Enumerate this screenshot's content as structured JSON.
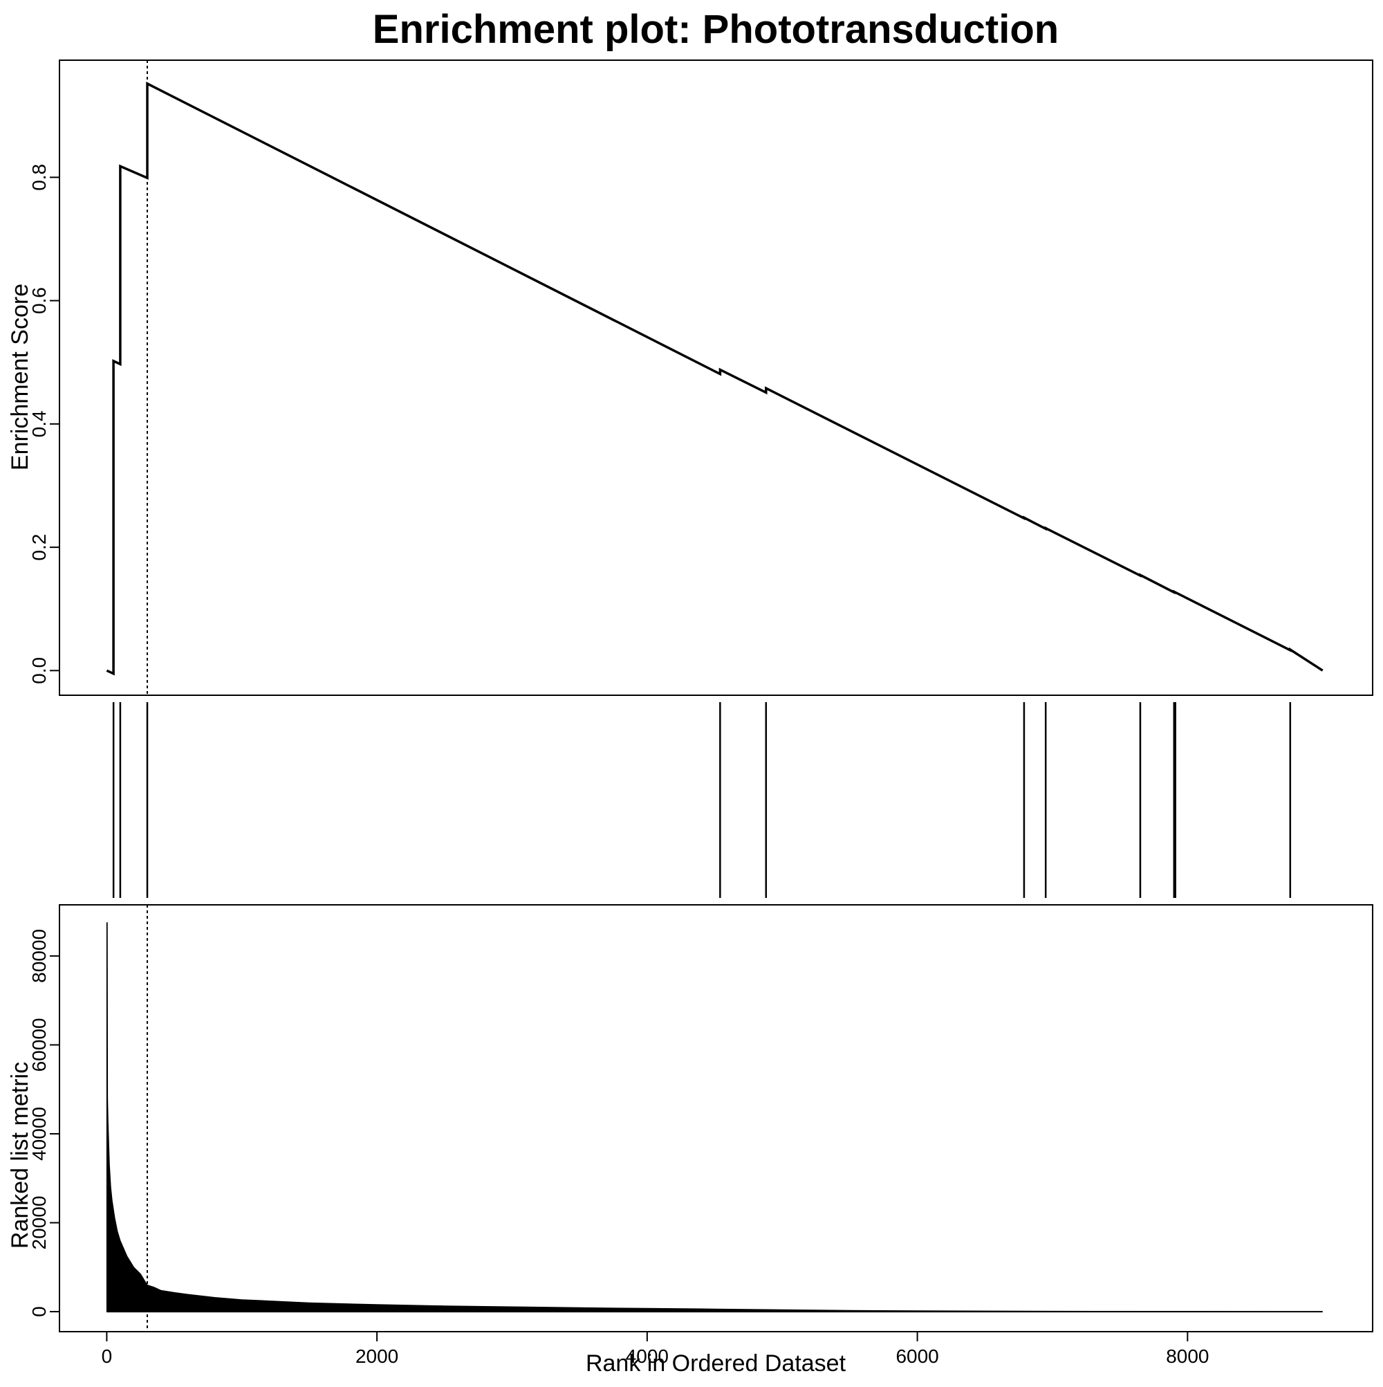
{
  "chart_data": {
    "type": "line",
    "title": "Enrichment plot: Phototransduction",
    "xlabel": "Rank in Ordered Dataset",
    "xlim": [
      -350,
      9370
    ],
    "x_ticks": [
      {
        "value": 0,
        "label": "0"
      },
      {
        "value": 2000,
        "label": "2000"
      },
      {
        "value": 4000,
        "label": "4000"
      },
      {
        "value": 6000,
        "label": "6000"
      },
      {
        "value": 8000,
        "label": "8000"
      }
    ],
    "leading_edge_rank": 300,
    "panels": [
      {
        "id": "enrichment",
        "type": "line",
        "ylabel": "Enrichment Score",
        "ylim": [
          -0.04,
          0.99
        ],
        "y_ticks": [
          {
            "value": 0.0,
            "label": "0.0"
          },
          {
            "value": 0.2,
            "label": "0.2"
          },
          {
            "value": 0.4,
            "label": "0.4"
          },
          {
            "value": 0.6,
            "label": "0.6"
          },
          {
            "value": 0.8,
            "label": "0.8"
          }
        ],
        "series": [
          {
            "points": [
              [
                0,
                0.0
              ],
              [
                50,
                -0.005
              ],
              [
                50,
                0.502
              ],
              [
                100,
                0.497
              ],
              [
                100,
                0.818
              ],
              [
                300,
                0.799
              ],
              [
                300,
                0.952
              ],
              [
                4540,
                0.481
              ],
              [
                4540,
                0.488
              ],
              [
                4880,
                0.451
              ],
              [
                4880,
                0.458
              ],
              [
                6790,
                0.247
              ],
              [
                6790,
                0.248
              ],
              [
                6950,
                0.23
              ],
              [
                6950,
                0.231
              ],
              [
                7650,
                0.154
              ],
              [
                7650,
                0.155
              ],
              [
                7900,
                0.127
              ],
              [
                7900,
                0.128
              ],
              [
                8760,
                0.033
              ],
              [
                8760,
                0.034
              ],
              [
                9000,
                0.0
              ]
            ]
          }
        ]
      },
      {
        "id": "hits",
        "type": "event",
        "hit_ranks": [
          50,
          100,
          300,
          4540,
          4880,
          6790,
          6950,
          7650,
          7900,
          7910,
          8760
        ]
      },
      {
        "id": "ranked-metric",
        "type": "area",
        "ylabel": "Ranked list metric",
        "ylim": [
          -4500,
          91500
        ],
        "y_ticks": [
          {
            "value": 0,
            "label": "0"
          },
          {
            "value": 20000,
            "label": "20000"
          },
          {
            "value": 40000,
            "label": "40000"
          },
          {
            "value": 60000,
            "label": "60000"
          },
          {
            "value": 80000,
            "label": "80000"
          }
        ],
        "series": [
          {
            "points": [
              [
                0,
                87500
              ],
              [
                4,
                87500
              ],
              [
                6,
                48000
              ],
              [
                10,
                43000
              ],
              [
                15,
                38000
              ],
              [
                20,
                33000
              ],
              [
                30,
                28000
              ],
              [
                40,
                25000
              ],
              [
                60,
                21000
              ],
              [
                80,
                18000
              ],
              [
                100,
                16000
              ],
              [
                150,
                12500
              ],
              [
                200,
                10000
              ],
              [
                250,
                8500
              ],
              [
                300,
                6000
              ],
              [
                350,
                5500
              ],
              [
                400,
                4800
              ],
              [
                500,
                4300
              ],
              [
                600,
                3900
              ],
              [
                800,
                3200
              ],
              [
                1000,
                2700
              ],
              [
                1500,
                2000
              ],
              [
                2000,
                1600
              ],
              [
                2500,
                1300
              ],
              [
                3000,
                1100
              ],
              [
                3500,
                900
              ],
              [
                4000,
                750
              ],
              [
                4500,
                600
              ],
              [
                5000,
                450
              ],
              [
                5500,
                300
              ],
              [
                6000,
                200
              ],
              [
                7000,
                100
              ],
              [
                8000,
                40
              ],
              [
                9000,
                0
              ]
            ]
          }
        ]
      }
    ]
  }
}
